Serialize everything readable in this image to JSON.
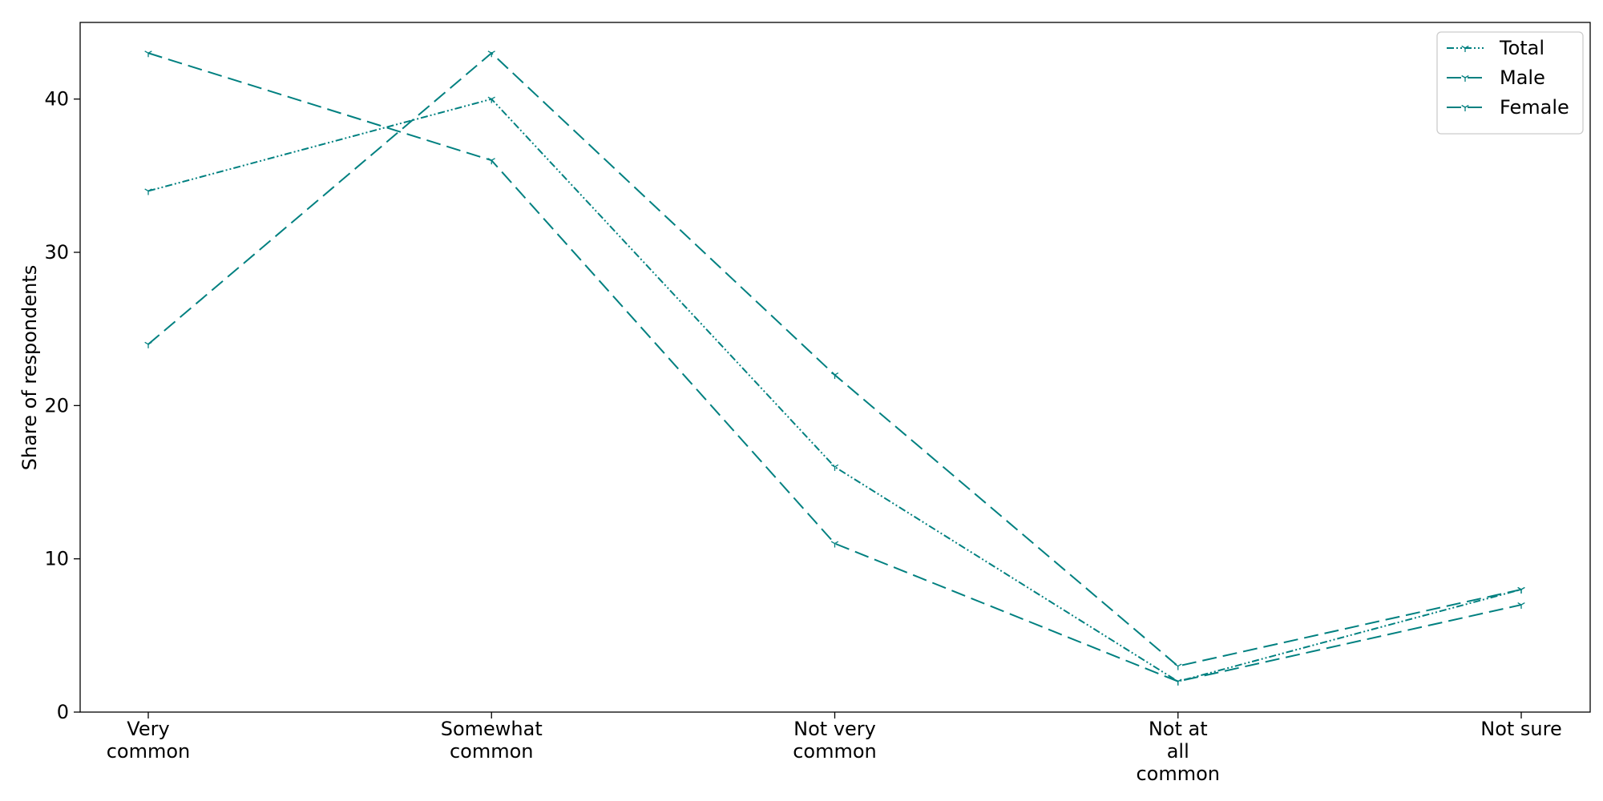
{
  "chart_data": {
    "type": "line",
    "title": "",
    "xlabel": "",
    "ylabel": "Share of respondents",
    "categories": [
      "Very common",
      "Somewhat common",
      "Not very common",
      "Not at all common",
      "Not sure"
    ],
    "category_label_lines": [
      [
        "Very",
        "common"
      ],
      [
        "Somewhat",
        "common"
      ],
      [
        "Not very",
        "common"
      ],
      [
        "Not at",
        "all",
        "common"
      ],
      [
        "Not sure"
      ]
    ],
    "ylim": [
      0,
      45
    ],
    "yticks": [
      0,
      10,
      20,
      30,
      40
    ],
    "grid": false,
    "legend_position": "top-right",
    "series": [
      {
        "name": "Total",
        "values": [
          34,
          40,
          16,
          2,
          8
        ],
        "color": "#008080",
        "line_style": "dash-dot-dot"
      },
      {
        "name": "Male",
        "values": [
          43,
          36,
          11,
          2,
          7
        ],
        "color": "#008080",
        "line_style": "dashed"
      },
      {
        "name": "Female",
        "values": [
          24,
          43,
          22,
          3,
          8
        ],
        "color": "#008080",
        "line_style": "dashed"
      }
    ]
  }
}
